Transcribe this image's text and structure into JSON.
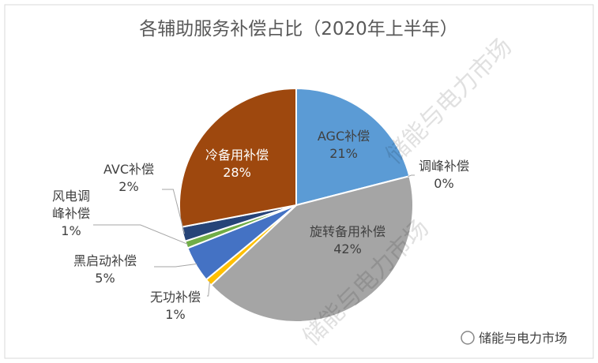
{
  "chart_data": {
    "type": "pie",
    "title": "各辅助服务补偿占比（2020年上半年）",
    "categories": [
      "AGC补偿",
      "调峰补偿",
      "旋转备用补偿",
      "无功补偿",
      "黑启动补偿",
      "风电调峰补偿",
      "AVC补偿",
      "冷备用补偿"
    ],
    "values": [
      21,
      0,
      42,
      1,
      5,
      1,
      2,
      28
    ],
    "value_labels": [
      "21%",
      "0%",
      "42%",
      "1%",
      "5%",
      "1%",
      "2%",
      "28%"
    ],
    "colors": [
      "#5b9bd5",
      "#ed7d31",
      "#a5a5a5",
      "#ffc000",
      "#4472c4",
      "#70ad47",
      "#264478",
      "#9e480e"
    ],
    "watermark": "储能与电力市场"
  }
}
